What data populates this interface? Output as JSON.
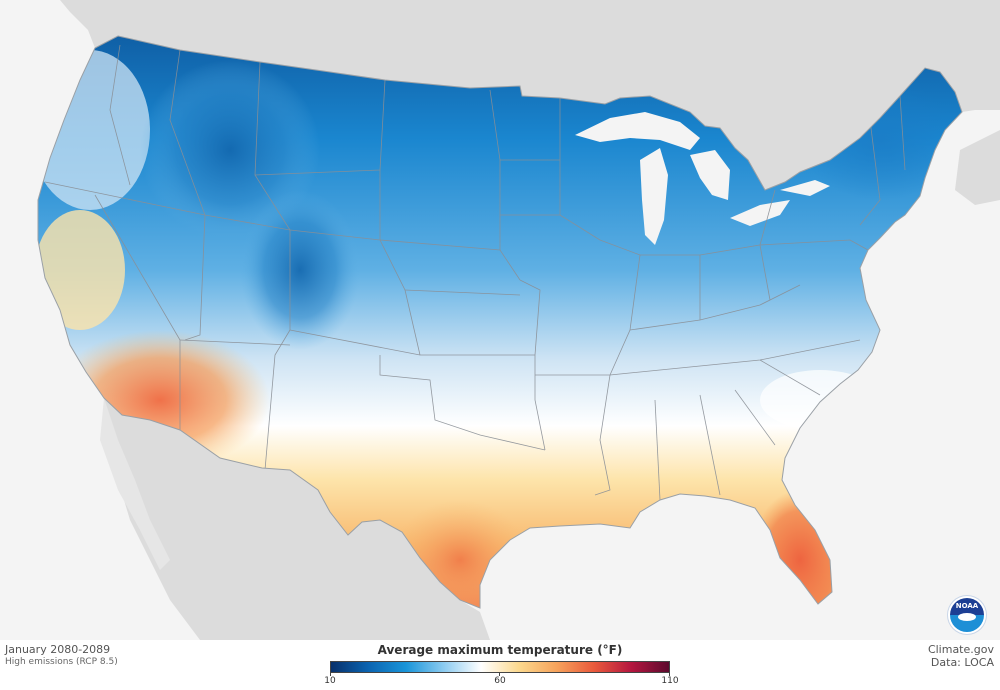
{
  "map": {
    "colors": {
      "ocean": "#f4f4f4",
      "land_other": "#dcdcdc",
      "lakes": "#f4f4f4",
      "state_borders": "#8a8f96",
      "cold_dark": "#0c4d8a",
      "cold": "#1a86cf",
      "cool": "#6eb7e6",
      "mild": "#dbe9f5",
      "neutral": "#ffffff",
      "warm": "#fbd88a",
      "hot": "#f6a25a",
      "very_hot": "#ee6a45",
      "extreme": "#8c0e3f"
    }
  },
  "footer": {
    "period": "January 2080-2089",
    "scenario": "High emissions (RCP 8.5)",
    "credit_site": "Climate.gov",
    "credit_data": "Data: LOCA"
  },
  "legend": {
    "title": "Average maximum temperature (°F)",
    "min_label": "10",
    "mid_label": "60",
    "max_label": "110",
    "stops": [
      "#08306b",
      "#0b64b1",
      "#1a95d9",
      "#8ccbf0",
      "#ffffff",
      "#fcd98e",
      "#f6a35c",
      "#ea5a3c",
      "#b4163f",
      "#5d0a2e"
    ]
  },
  "logo": {
    "name": "noaa-logo",
    "text": "NOAA"
  }
}
